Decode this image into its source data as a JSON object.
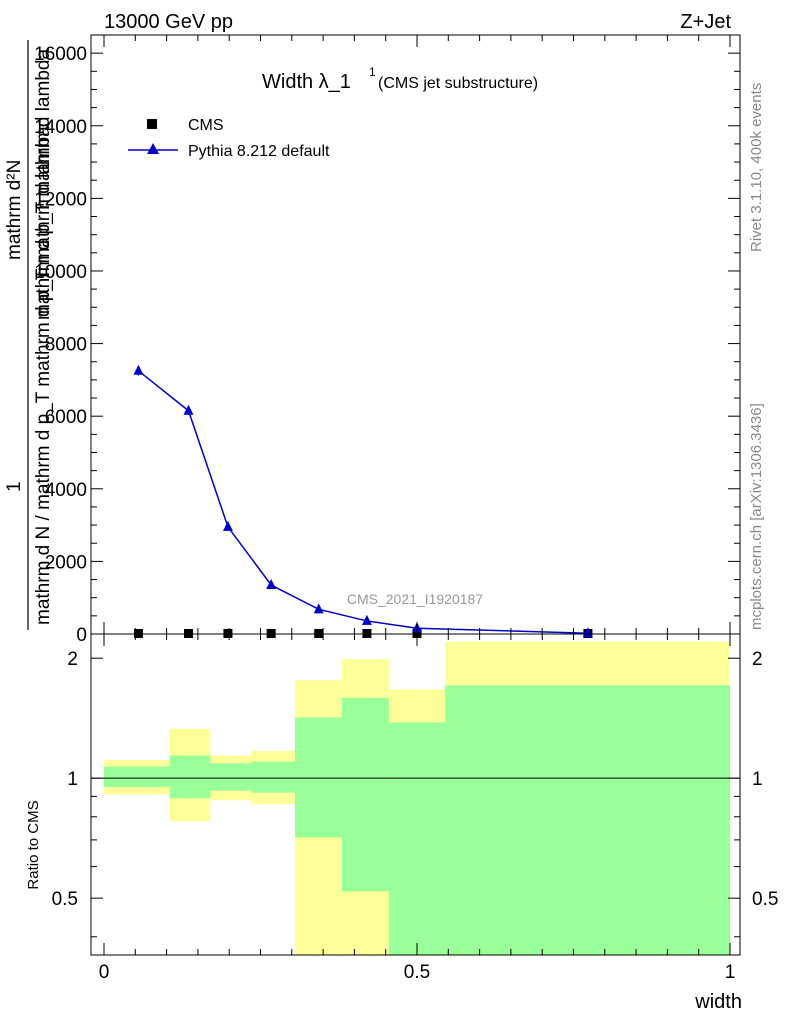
{
  "header": {
    "left": "13000 GeV pp",
    "right": "Z+Jet"
  },
  "side_labels": {
    "rivet": "Rivet 3.1.10,  400k events",
    "mcplots": "mcplots.cern.ch [arXiv:1306.3436]"
  },
  "chart_data": [
    {
      "type": "line",
      "title": "Width λ_1",
      "title_sup": "1",
      "subtitle": "(CMS jet substructure)",
      "watermark": "CMS_2021_I1920187",
      "xlabel": "width",
      "ylabel_lines": [
        "mathrm d²N",
        "mathrm d p_T mathrm d lambda",
        "1",
        "mathrm d N / mathrm d p_T mathrm d p_T mathrm d lamba"
      ],
      "xlim": [
        0,
        1
      ],
      "ylim": [
        0,
        16500
      ],
      "y_ticks": [
        0,
        2000,
        4000,
        6000,
        8000,
        10000,
        12000,
        14000,
        16000
      ],
      "y_tick_labels": [
        "0",
        "2000",
        "4000",
        "6000",
        "8000",
        "10000",
        "12000",
        "14000",
        "16000"
      ],
      "legend_placement": "top-left",
      "bin_edges": [
        0,
        0.105,
        0.17,
        0.235,
        0.305,
        0.38,
        0.455,
        0.545,
        1.0
      ],
      "series": [
        {
          "name": "CMS",
          "marker": "square",
          "color": "#000000",
          "x": [
            0.055,
            0.135,
            0.198,
            0.267,
            0.343,
            0.42,
            0.5,
            0.773
          ],
          "values": [
            0,
            0,
            0,
            0,
            0,
            0,
            0,
            0
          ]
        },
        {
          "name": "Pythia 8.212 default",
          "marker": "triangle",
          "color": "#0000cc",
          "x": [
            0.055,
            0.135,
            0.198,
            0.267,
            0.343,
            0.42,
            0.5,
            0.773
          ],
          "values": [
            7250,
            6150,
            2950,
            1350,
            680,
            360,
            160,
            20
          ],
          "errors": [
            130,
            120,
            60,
            40,
            25,
            20,
            15,
            5
          ]
        }
      ]
    },
    {
      "type": "area",
      "ylabel": "Ratio to CMS",
      "xlabel": "width",
      "xlim": [
        0,
        1
      ],
      "log_y": true,
      "ylim": [
        0.36,
        2.3
      ],
      "y_ticks": [
        0.5,
        1,
        2
      ],
      "y_tick_labels": [
        "0.5",
        "1",
        "2"
      ],
      "x_ticks": [
        0,
        0.5,
        1
      ],
      "x_tick_labels": [
        "0",
        "0.5",
        "1"
      ],
      "bin_edges": [
        0,
        0.105,
        0.17,
        0.235,
        0.305,
        0.38,
        0.455,
        0.545,
        1.0
      ],
      "band_outer": {
        "color": "#ffff99",
        "upper": [
          1.11,
          1.33,
          1.14,
          1.17,
          1.76,
          1.99,
          1.67,
          2.2
        ],
        "lower": [
          0.91,
          0.78,
          0.88,
          0.86,
          0.36,
          0.36,
          0.37,
          0.36
        ]
      },
      "band_inner": {
        "color": "#99ff99",
        "upper": [
          1.07,
          1.14,
          1.09,
          1.1,
          1.42,
          1.59,
          1.38,
          1.71
        ],
        "lower": [
          0.95,
          0.89,
          0.93,
          0.92,
          0.71,
          0.52,
          0.36,
          0.36
        ]
      },
      "reference_line": 1
    }
  ]
}
